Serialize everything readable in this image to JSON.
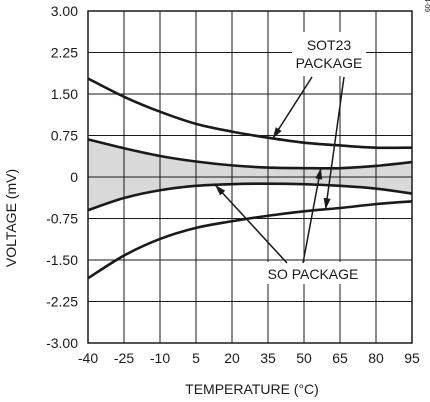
{
  "chart_data": {
    "type": "line",
    "xlabel": "TEMPERATURE (°C)",
    "ylabel": "VOLTAGE (mV)",
    "xlim": [
      -40,
      95
    ],
    "ylim": [
      -3.0,
      3.0
    ],
    "x_ticks": [
      -40,
      -25,
      -10,
      5,
      20,
      35,
      50,
      65,
      80,
      95
    ],
    "x_tick_labels": [
      "-40",
      "-25",
      "-10",
      "5",
      "20",
      "35",
      "50",
      "65",
      "80",
      "95"
    ],
    "y_ticks": [
      3.0,
      2.25,
      1.5,
      0.75,
      0,
      -0.75,
      -1.5,
      -2.25,
      -3.0
    ],
    "y_tick_labels": [
      "3.00",
      "2.25",
      "1.50",
      "0.75",
      "0",
      "-0.75",
      "-1.50",
      "-2.25",
      "-3.00"
    ],
    "grid": true,
    "figure_id": "MAX4130/34-09",
    "series": [
      {
        "x": [
          -40,
          -25,
          -10,
          5,
          20,
          35,
          50,
          65,
          80,
          95
        ],
        "y": [
          1.78,
          1.45,
          1.18,
          0.96,
          0.82,
          0.71,
          0.62,
          0.57,
          0.53,
          0.53
        ]
      },
      {
        "x": [
          -40,
          -25,
          -10,
          5,
          20,
          35,
          50,
          65,
          80,
          95
        ],
        "y": [
          0.68,
          0.52,
          0.38,
          0.28,
          0.21,
          0.17,
          0.16,
          0.16,
          0.2,
          0.27
        ]
      },
      {
        "x": [
          -40,
          -25,
          -10,
          5,
          20,
          35,
          50,
          65,
          80,
          95
        ],
        "y": [
          -0.6,
          -0.38,
          -0.24,
          -0.16,
          -0.13,
          -0.12,
          -0.13,
          -0.16,
          -0.21,
          -0.3
        ]
      },
      {
        "x": [
          -40,
          -25,
          -10,
          5,
          20,
          35,
          50,
          65,
          80,
          95
        ],
        "y": [
          -1.83,
          -1.42,
          -1.12,
          -0.92,
          -0.8,
          -0.7,
          -0.62,
          -0.56,
          -0.49,
          -0.44
        ]
      }
    ],
    "shaded_band": {
      "between": [
        1,
        2
      ],
      "color": "#d9d9d9"
    },
    "annotations": [
      {
        "lines": [
          "SOT23",
          "PACKAGE"
        ]
      },
      {
        "lines": [
          "SO PACKAGE"
        ]
      }
    ]
  },
  "colors": {
    "line": "#1a1a1a",
    "grid": "#1a1a1a",
    "band": "#d9d9d9"
  }
}
